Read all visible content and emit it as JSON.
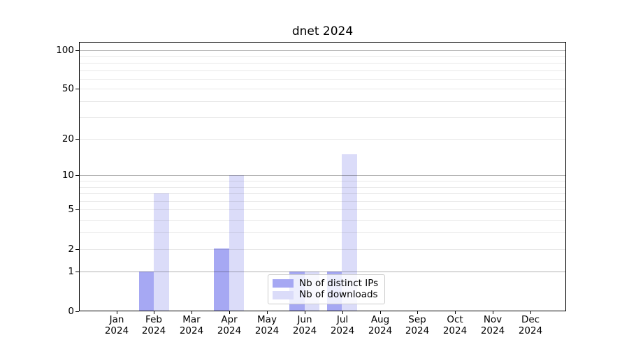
{
  "chart_data": {
    "type": "bar",
    "title": "dnet 2024",
    "categories": [
      "Jan",
      "Feb",
      "Mar",
      "Apr",
      "May",
      "Jun",
      "Jul",
      "Aug",
      "Sep",
      "Oct",
      "Nov",
      "Dec"
    ],
    "category_year": "2024",
    "series": [
      {
        "name": "Nb of distinct IPs",
        "color": "#a6a8f3",
        "values": [
          0,
          1,
          0,
          2,
          0,
          1,
          1,
          0,
          0,
          0,
          0,
          0
        ]
      },
      {
        "name": "Nb of downloads",
        "color": "#dbdcf9",
        "values": [
          0,
          7,
          0,
          10,
          0,
          1,
          15,
          0,
          0,
          0,
          0,
          0
        ]
      }
    ],
    "y_axis": {
      "scale": "log10(1+value)",
      "tick_values": [
        0,
        1,
        2,
        5,
        10,
        20,
        50,
        100
      ],
      "tick_labels": [
        "0",
        "1",
        "2",
        "5",
        "10",
        "20",
        "50",
        "100"
      ],
      "major_grid_values": [
        1,
        10,
        100
      ],
      "minor_grid_values": [
        2,
        3,
        4,
        5,
        6,
        7,
        8,
        9,
        20,
        30,
        40,
        50,
        60,
        70,
        80,
        90
      ],
      "range": [
        0,
        100
      ]
    },
    "xlabel": "",
    "ylabel": "",
    "grid": "on",
    "legend": {
      "position": "inside-bottom-center"
    }
  },
  "colors": {
    "background": "#ffffff",
    "spine": "#000000",
    "text": "#000000",
    "major_grid": "rgba(0,0,0,0.30)",
    "minor_grid": "rgba(0,0,0,0.09)",
    "legend_border": "#cccccc"
  }
}
